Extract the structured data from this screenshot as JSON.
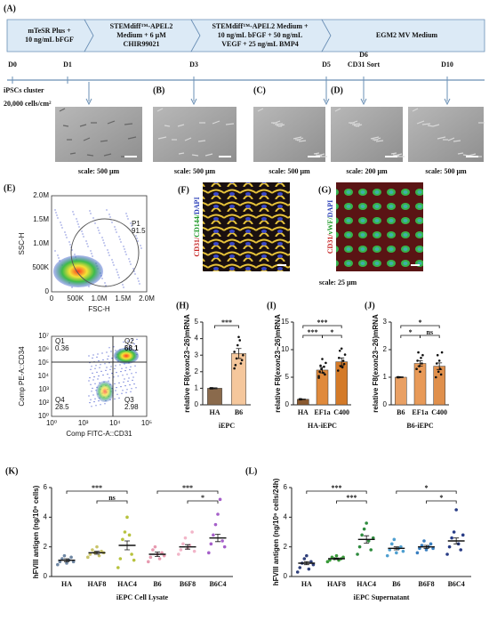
{
  "panel_a": {
    "label": "(A)",
    "stages": [
      [
        "mTeSR Plus +",
        "10 ng/mL bFGF"
      ],
      [
        "STEMdiff™-APEL2",
        "Medium + 6 μM",
        "CHIR99021"
      ],
      [
        "STEMdiff™-APEL2 Medium +",
        "10 ng/mL bFGF + 50 ng/mL",
        "VEGF + 25 ng/mL BMP4"
      ],
      [
        "EGM2 MV Medium"
      ]
    ],
    "days": [
      "D0",
      "D1",
      "D3",
      "D5",
      "D6",
      "D10"
    ],
    "sort": "CD31 Sort",
    "seeding": [
      "iPSCs cluster",
      "20,000 cells/cm²"
    ]
  },
  "micrographs": {
    "labels": [
      "(B)",
      "(C)",
      "(D)"
    ],
    "scales": [
      "scale:  500 μm",
      "scale:  500 μm",
      "scale:  500 μm",
      "scale:  200 μm",
      "scale:  500 μm"
    ]
  },
  "panel_e": {
    "label": "(E)",
    "scatter": {
      "xlabel": "FSC-H",
      "ylabel": "SSC-H",
      "xticks": [
        "0",
        "500K",
        "1.0M",
        "1.5M",
        "2.0M"
      ],
      "yticks": [
        "0",
        "500K",
        "1.0M",
        "1.5M",
        "2.0M"
      ],
      "gate": "P1",
      "gate_value": "91.5"
    },
    "quadrant": {
      "xlabel": "Comp FITC-A::CD31",
      "ylabel": "Comp PE-A::CD34",
      "xticks": [
        "10⁰",
        "10³",
        "10⁴",
        "10⁵"
      ],
      "yticks": [
        "10⁰",
        "10²",
        "10³",
        "10⁴",
        "10⁵",
        "10⁶",
        "10⁷"
      ],
      "quadrants": [
        [
          "Q1",
          "0.36"
        ],
        [
          "Q2",
          "68.1"
        ],
        [
          "Q3",
          "2.98"
        ],
        [
          "Q4",
          "28.5"
        ]
      ]
    }
  },
  "immuno": {
    "labels": [
      "(F)",
      "(G)"
    ],
    "stains": [
      [
        "CD31/",
        "CD144/",
        "DAPI"
      ],
      [
        "CD31/",
        "vWF/",
        "DAPI"
      ]
    ],
    "scales": [
      "scale:  25 μm",
      "scale:  25 μm"
    ]
  },
  "charts": [
    {
      "label": "(H)",
      "type": "bar",
      "categories": [
        "HA",
        "B6"
      ],
      "values": [
        1.0,
        3.1
      ],
      "errors": [
        0.03,
        0.3
      ],
      "colors": [
        "#8a6a4c",
        "#f5c79c"
      ],
      "points": [
        [
          1.0,
          1.0,
          1.0
        ],
        [
          3.2,
          2.4,
          2.8,
          3.6,
          4.1,
          3.9,
          2.5,
          2.7,
          3.0,
          2.2
        ]
      ],
      "ylim": [
        0,
        5
      ],
      "yticks": [
        0,
        1,
        2,
        3,
        4,
        5
      ],
      "ylabel": "relative F8(exon23~26)mRNA",
      "xlabel": "iEPC",
      "significance": [
        {
          "pair": [
            "HA",
            "B6"
          ],
          "label": "***"
        }
      ]
    },
    {
      "label": "(I)",
      "type": "bar",
      "categories": [
        "HA",
        "EF1a",
        "C400"
      ],
      "values": [
        1.0,
        6.3,
        7.8
      ],
      "errors": [
        0.05,
        0.5,
        0.7
      ],
      "colors": [
        "#8a5a30",
        "#e08a3c",
        "#d47a28"
      ],
      "points": [
        [
          1.0,
          1.0,
          1.0
        ],
        [
          5.2,
          6.0,
          7.1,
          6.5,
          8.3,
          5.8,
          6.9,
          5.5,
          7.6,
          4.9
        ],
        [
          6.2,
          8.5,
          9.8,
          7.0,
          10.2,
          6.8,
          8.0,
          7.4,
          9.1
        ]
      ],
      "ylim": [
        0,
        15
      ],
      "yticks": [
        0,
        5,
        10,
        15
      ],
      "ylabel": "relative F8(exon23~26)mRNA",
      "xlabel": "HA-iEPC",
      "significance": [
        {
          "pair": [
            "HA",
            "C400"
          ],
          "label": "***"
        },
        {
          "pair": [
            "HA",
            "EF1a"
          ],
          "label": "***"
        },
        {
          "pair": [
            "EF1a",
            "C400"
          ],
          "label": "*"
        }
      ]
    },
    {
      "label": "(J)",
      "type": "bar",
      "categories": [
        "B6",
        "EF1a",
        "C400"
      ],
      "values": [
        1.0,
        1.5,
        1.4
      ],
      "errors": [
        0.02,
        0.1,
        0.12
      ],
      "colors": [
        "#e9a064",
        "#e89a58",
        "#e0904c"
      ],
      "points": [
        [
          1.0,
          1.0,
          1.0
        ],
        [
          1.3,
          1.6,
          1.9,
          1.4,
          1.2,
          1.7,
          1.5,
          1.8
        ],
        [
          1.0,
          1.5,
          1.8,
          1.2,
          1.6,
          1.3,
          1.1,
          1.9
        ]
      ],
      "ylim": [
        0,
        3
      ],
      "yticks": [
        0,
        1,
        2,
        3
      ],
      "ylabel": "relative F8(exon23~26)mRNA",
      "xlabel": "B6-iEPC",
      "significance": [
        {
          "pair": [
            "B6",
            "C400"
          ],
          "label": "*"
        },
        {
          "pair": [
            "B6",
            "EF1a"
          ],
          "label": "*"
        },
        {
          "pair": [
            "EF1a",
            "C400"
          ],
          "label": "ns"
        }
      ]
    },
    {
      "label": "(K)",
      "type": "dot",
      "categories": [
        "HA",
        "HAF8",
        "HAC4",
        "B6",
        "B6F8",
        "B6C4"
      ],
      "values": [
        1.1,
        1.6,
        2.1,
        1.5,
        2.0,
        2.6
      ],
      "errors": [
        0.1,
        0.1,
        0.3,
        0.15,
        0.15,
        0.25
      ],
      "colors": [
        "#6f87a3",
        "#c9c46a",
        "#b7c23d",
        "#e79ab0",
        "#f2b5c8",
        "#a55fc9"
      ],
      "points": [
        [
          0.8,
          1.0,
          1.2,
          1.4,
          0.9,
          1.1,
          1.3,
          1.0
        ],
        [
          1.3,
          1.5,
          1.8,
          1.6,
          2.0,
          1.4,
          1.7,
          1.6
        ],
        [
          0.6,
          1.2,
          2.5,
          3.0,
          4.0,
          2.8,
          1.5,
          1.1
        ],
        [
          1.0,
          1.3,
          1.8,
          2.0,
          1.5,
          1.2,
          1.6,
          1.4
        ],
        [
          1.5,
          1.8,
          2.2,
          2.6,
          1.9,
          2.1,
          3.0,
          1.7
        ],
        [
          1.6,
          2.2,
          2.8,
          3.5,
          4.2,
          5.2,
          2.4,
          2.0
        ]
      ],
      "ylim": [
        0,
        6
      ],
      "yticks": [
        0,
        2,
        4,
        6
      ],
      "ylabel": "hFVIII antigen (ng/10⁶ cells)",
      "xlabel": "iEPC Cell Lysate",
      "significance": [
        {
          "pair": [
            "HA",
            "HAC4"
          ],
          "label": "***"
        },
        {
          "pair": [
            "HAF8",
            "HAC4"
          ],
          "label": "ns"
        },
        {
          "pair": [
            "B6",
            "B6C4"
          ],
          "label": "***"
        },
        {
          "pair": [
            "B6F8",
            "B6C4"
          ],
          "label": "*"
        }
      ]
    },
    {
      "label": "(L)",
      "type": "dot",
      "categories": [
        "HA",
        "HAF8",
        "HAC4",
        "B6",
        "B6F8",
        "B6C4"
      ],
      "values": [
        0.9,
        1.2,
        2.5,
        1.9,
        2.0,
        2.4
      ],
      "errors": [
        0.1,
        0.05,
        0.25,
        0.1,
        0.1,
        0.2
      ],
      "colors": [
        "#2f3f7a",
        "#3a9a3a",
        "#2e8b3e",
        "#4f9fd0",
        "#3a7fc0",
        "#283c86"
      ],
      "points": [
        [
          0.3,
          0.6,
          0.9,
          1.2,
          1.4,
          0.5,
          1.0,
          0.8
        ],
        [
          1.0,
          1.1,
          1.3,
          1.2,
          1.4,
          1.1,
          1.2,
          1.3
        ],
        [
          1.5,
          2.0,
          2.8,
          3.2,
          3.6,
          2.4,
          1.8,
          2.6
        ],
        [
          1.4,
          1.8,
          2.2,
          2.5,
          1.6,
          1.9,
          2.0,
          1.7
        ],
        [
          1.6,
          1.9,
          2.1,
          2.4,
          1.8,
          2.0,
          2.2,
          1.9
        ],
        [
          1.5,
          2.0,
          2.6,
          3.0,
          4.5,
          2.2,
          1.8,
          2.8
        ]
      ],
      "ylim": [
        0,
        6
      ],
      "yticks": [
        0,
        2,
        4,
        6
      ],
      "ylabel": "hFVIII antigen (ng/10⁶ cells/24h)",
      "xlabel": "iEPC Supernatant",
      "significance": [
        {
          "pair": [
            "HA",
            "HAC4"
          ],
          "label": "***"
        },
        {
          "pair": [
            "HAF8",
            "HAC4"
          ],
          "label": "***"
        },
        {
          "pair": [
            "B6",
            "B6C4"
          ],
          "label": "*"
        },
        {
          "pair": [
            "B6F8",
            "B6C4"
          ],
          "label": "*"
        }
      ]
    }
  ]
}
